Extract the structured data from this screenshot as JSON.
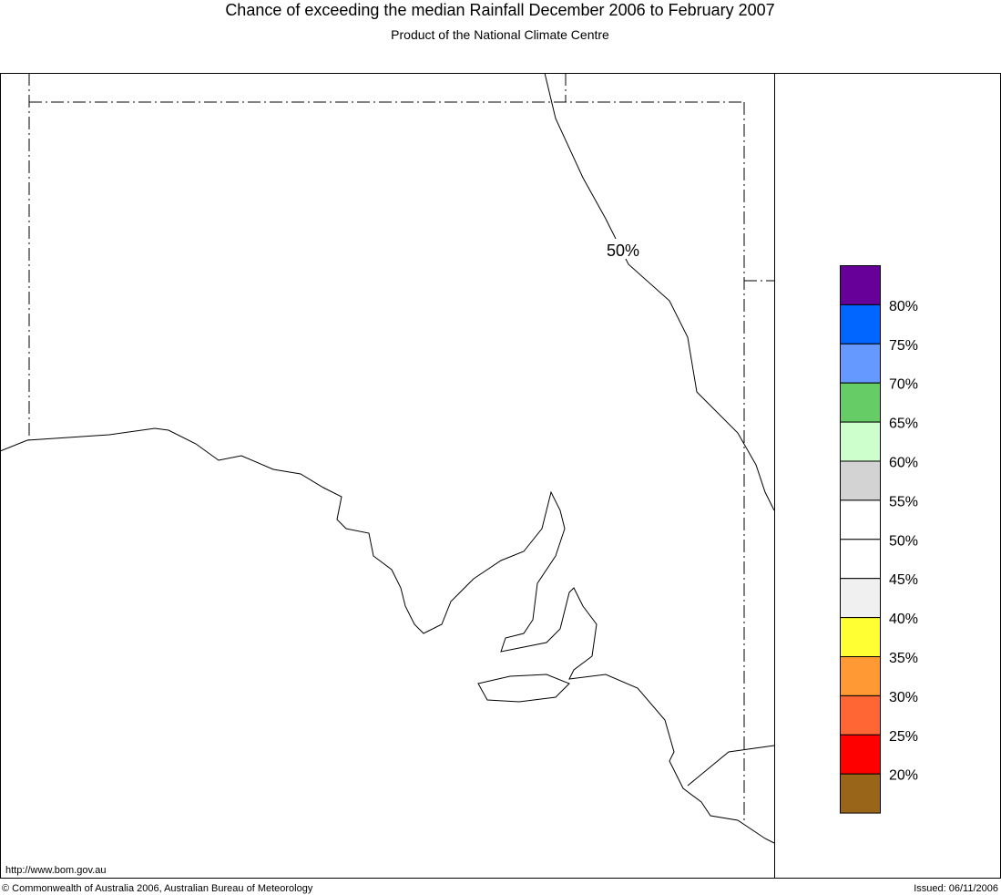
{
  "header": {
    "title": "Chance of exceeding the median Rainfall December 2006 to February 2007",
    "subtitle": "Product of the National Climate Centre"
  },
  "map": {
    "contour_label": "50%"
  },
  "legend": {
    "colors": [
      "#660099",
      "#0066ff",
      "#6699ff",
      "#66cc66",
      "#ccffcc",
      "#d3d3d3",
      "#ffffff",
      "#ffffff",
      "#f0f0f0",
      "#ffff33",
      "#ff9933",
      "#ff6633",
      "#ff0000",
      "#996619"
    ],
    "labels": [
      "80%",
      "75%",
      "70%",
      "65%",
      "60%",
      "55%",
      "50%",
      "45%",
      "40%",
      "35%",
      "30%",
      "25%",
      "20%"
    ]
  },
  "footer": {
    "url": "http://www.bom.gov.au",
    "copyright": "© Commonwealth of Australia 2006, Australian Bureau of Meteorology",
    "issued": "Issued: 06/11/2006"
  }
}
